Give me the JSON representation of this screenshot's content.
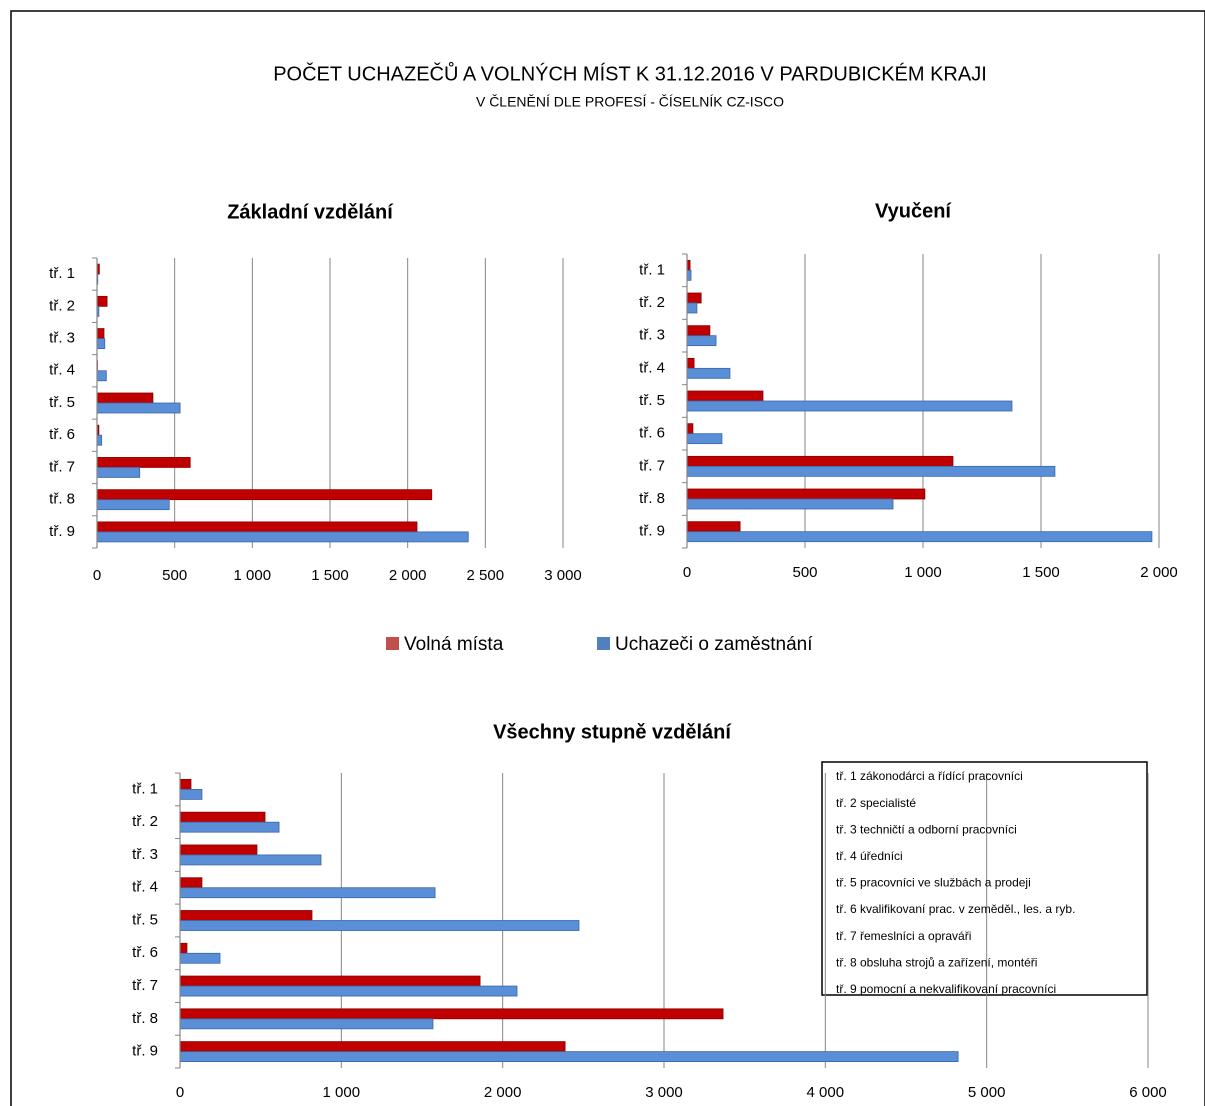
{
  "title": "POČET UCHAZEČŮ A VOLNÝCH MÍST K 31.12.2016 V PARDUBICKÉM KRAJI",
  "subtitle": "V ČLENĚNÍ DLE PROFESÍ - ČÍSELNÍK CZ-ISCO",
  "chart_data": [
    {
      "type": "hbar",
      "title": "Základní vzdělání",
      "categories": [
        "tř. 1",
        "tř. 2",
        "tř. 3",
        "tř. 4",
        "tř. 5",
        "tř. 6",
        "tř. 7",
        "tř. 8",
        "tř. 9"
      ],
      "series": [
        {
          "name": "Volná místa",
          "color": "#c00000",
          "values": [
            15,
            65,
            45,
            3,
            360,
            12,
            600,
            2155,
            2060
          ]
        },
        {
          "name": "Uchazeči o zaměstnání",
          "color": "#5a8ed6",
          "values": [
            5,
            12,
            50,
            60,
            535,
            30,
            275,
            465,
            2390
          ]
        }
      ],
      "xlim": [
        0,
        3000
      ],
      "xticks": [
        0,
        500,
        {
          "value": 1000,
          "label": "1 000"
        },
        {
          "value": 1500,
          "label": "1 500"
        },
        {
          "value": 2000,
          "label": "2 000"
        },
        {
          "value": 2500,
          "label": "2 500"
        },
        {
          "value": 3000,
          "label": "3 000"
        }
      ],
      "grid": true
    },
    {
      "type": "hbar",
      "title": "Vyučení",
      "categories": [
        "tř. 1",
        "tř. 2",
        "tř. 3",
        "tř. 4",
        "tř. 5",
        "tř. 6",
        "tř. 7",
        "tř. 8",
        "tř. 9"
      ],
      "series": [
        {
          "name": "Volná místa",
          "color": "#c00000",
          "values": [
            13,
            60,
            97,
            30,
            322,
            25,
            1127,
            1008,
            225
          ]
        },
        {
          "name": "Uchazeči o zaměstnání",
          "color": "#5a8ed6",
          "values": [
            17,
            42,
            123,
            182,
            1377,
            148,
            1559,
            873,
            1970
          ]
        }
      ],
      "xlim": [
        0,
        2000
      ],
      "xticks": [
        0,
        500,
        {
          "value": 1000,
          "label": "1 000"
        },
        {
          "value": 1500,
          "label": "1 500"
        },
        {
          "value": 2000,
          "label": "2 000"
        }
      ],
      "grid": true
    },
    {
      "type": "hbar",
      "title": "Všechny stupně vzdělání",
      "categories": [
        "tř. 1",
        "tř. 2",
        "tř. 3",
        "tř. 4",
        "tř. 5",
        "tř. 6",
        "tř. 7",
        "tř. 8",
        "tř. 9"
      ],
      "series": [
        {
          "name": "Volná místa",
          "color": "#c00000",
          "values": [
            68,
            527,
            477,
            136,
            818,
            43,
            1860,
            3366,
            2387
          ]
        },
        {
          "name": "Uchazeči o zaměstnání",
          "color": "#5a8ed6",
          "values": [
            136,
            614,
            874,
            1581,
            2473,
            248,
            2089,
            1568,
            4823
          ]
        }
      ],
      "xlim": [
        0,
        6000
      ],
      "xticks": [
        0,
        {
          "value": 1000,
          "label": "1 000"
        },
        {
          "value": 2000,
          "label": "2 000"
        },
        {
          "value": 3000,
          "label": "3 000"
        },
        {
          "value": 4000,
          "label": "4 000"
        },
        {
          "value": 5000,
          "label": "5 000"
        },
        {
          "value": 6000,
          "label": "6 000"
        }
      ],
      "grid": true
    }
  ],
  "notes": [
    "tř. 1 zákonodárci a řídící pracovníci",
    "tř. 2 specialisté",
    "tř. 3 techničtí a odborní pracovníci",
    "tř. 4 úředníci",
    "tř. 5 pracovníci ve službách a prodeji",
    "tř. 6 kvalifikovaní prac. v zeměděl., les. a ryb.",
    "tř. 7 řemeslníci a opraváři",
    "tř. 8 obsluha strojů a zařízení, montéři",
    "tř. 9 pomocní a nekvalifikovaní pracovníci"
  ]
}
